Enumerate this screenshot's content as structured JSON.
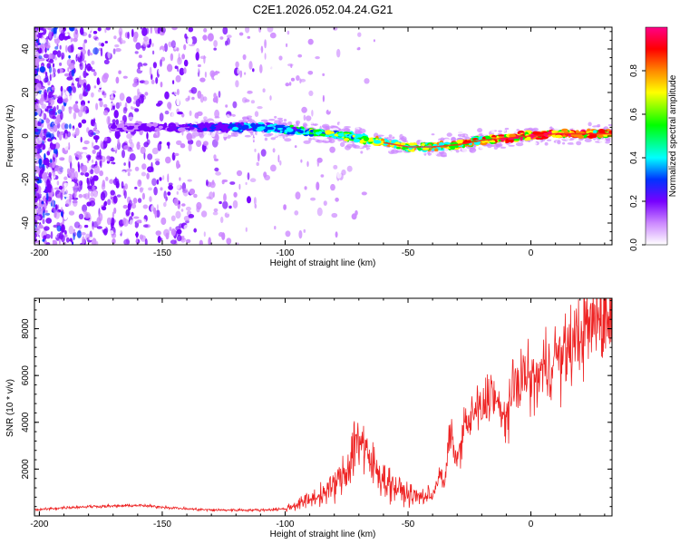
{
  "title": "C2E1.2026.052.04.24.G21",
  "chart_data": [
    {
      "type": "heatmap",
      "name": "spectrogram",
      "xlabel": "Height of straight line (km)",
      "ylabel": "Frequency (Hz)",
      "xlim": [
        -202,
        33
      ],
      "ylim": [
        -50,
        50
      ],
      "xticks": [
        -200,
        -150,
        -100,
        -50,
        0
      ],
      "yticks": [
        -40,
        -20,
        0,
        20,
        40
      ],
      "signal_ridge": {
        "x": [
          -200,
          -160,
          -130,
          -110,
          -100,
          -90,
          -80,
          -70,
          -60,
          -50,
          -40,
          -30,
          -20,
          -10,
          0,
          10,
          20,
          33
        ],
        "frequency": [
          4,
          4,
          4,
          4,
          3,
          2,
          1,
          -1,
          -3,
          -5,
          -5,
          -4,
          -2,
          -1,
          0,
          1,
          1,
          1
        ],
        "amplitude": [
          0.2,
          0.25,
          0.35,
          0.45,
          0.5,
          0.6,
          0.6,
          0.65,
          0.7,
          0.7,
          0.75,
          0.8,
          0.85,
          0.9,
          0.95,
          0.95,
          0.9,
          0.8
        ]
      },
      "colorbar": {
        "label": "Normalized spectral amplitude",
        "range": [
          0,
          1
        ],
        "ticks": [
          "0.0",
          "0.2",
          "0.4",
          "0.6",
          "0.8"
        ],
        "colors": [
          "#ffffff",
          "#cc88ff",
          "#7700ff",
          "#0033ff",
          "#00ffff",
          "#00ff00",
          "#ffff00",
          "#ff8800",
          "#ff0000",
          "#ff0088"
        ]
      }
    },
    {
      "type": "line",
      "name": "snr",
      "xlabel": "Height of straight line (km)",
      "ylabel": "SNR (10 * v/v)",
      "xlim": [
        -202,
        33
      ],
      "ylim": [
        0,
        9300
      ],
      "xticks": [
        -200,
        -150,
        -100,
        -50,
        0
      ],
      "yticks": [
        2000,
        4000,
        6000,
        8000
      ],
      "line_color": "#ee2222",
      "series": [
        {
          "name": "SNR",
          "x": [
            -202,
            -190,
            -180,
            -170,
            -160,
            -150,
            -140,
            -130,
            -120,
            -110,
            -100,
            -90,
            -85,
            -80,
            -75,
            -72,
            -70,
            -67,
            -65,
            -62,
            -60,
            -55,
            -50,
            -45,
            -40,
            -37,
            -35,
            -33,
            -30,
            -27,
            -25,
            -22,
            -20,
            -17,
            -15,
            -12,
            -10,
            -8,
            -5,
            -2,
            0,
            3,
            5,
            8,
            10,
            13,
            15,
            18,
            20,
            25,
            30,
            33
          ],
          "y": [
            250,
            350,
            400,
            420,
            450,
            380,
            300,
            250,
            250,
            250,
            300,
            700,
            900,
            1300,
            1900,
            3000,
            3500,
            2500,
            2200,
            1900,
            1600,
            1200,
            900,
            800,
            900,
            1800,
            1300,
            3600,
            2300,
            3900,
            4000,
            4600,
            4400,
            5200,
            5300,
            4100,
            4300,
            5000,
            5900,
            6000,
            5700,
            5900,
            6300,
            6500,
            6900,
            6700,
            7200,
            7400,
            7800,
            8200,
            8500,
            8800
          ]
        }
      ]
    }
  ]
}
